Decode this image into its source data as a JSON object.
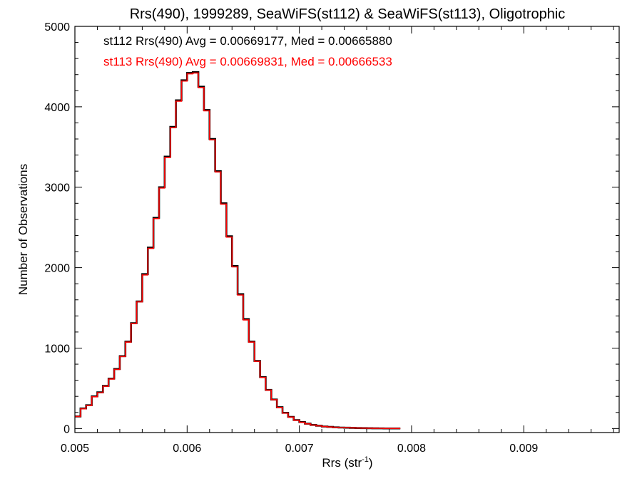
{
  "chart_data": {
    "type": "line",
    "title": "Rrs(490), 1999289, SeaWiFS(st112) & SeaWiFS(st113), Oligotrophic",
    "xlabel_main": "Rrs (str",
    "xlabel_sup": "-1",
    "xlabel_end": ")",
    "ylabel": "Number of Observations",
    "xlim": [
      0.005,
      0.00985
    ],
    "ylim": [
      -50,
      5000
    ],
    "xticks": [
      0.005,
      0.006,
      0.007,
      0.008,
      0.009
    ],
    "xtick_labels": [
      "0.005",
      "0.006",
      "0.007",
      "0.008",
      "0.009"
    ],
    "yticks": [
      0,
      1000,
      2000,
      3000,
      4000,
      5000
    ],
    "ytick_labels": [
      "0",
      "1000",
      "2000",
      "3000",
      "4000",
      "5000"
    ],
    "grid": false,
    "annotations": [
      {
        "text": "st112 Rrs(490) Avg = 0.00669177, Med = 0.00665880",
        "color": "#000000"
      },
      {
        "text": "st113 Rrs(490) Avg = 0.00669831, Med = 0.00666533",
        "color": "#ff0000"
      }
    ],
    "series": [
      {
        "color": "#000000",
        "x_start": 0.005,
        "bin_width": 5e-05,
        "values": [
          150,
          250,
          290,
          400,
          450,
          530,
          620,
          740,
          900,
          1080,
          1310,
          1580,
          1920,
          2250,
          2620,
          3000,
          3380,
          3750,
          4080,
          4330,
          4420,
          4430,
          4250,
          3960,
          3600,
          3200,
          2800,
          2390,
          2020,
          1670,
          1360,
          1080,
          840,
          640,
          480,
          360,
          265,
          195,
          145,
          105,
          80,
          60,
          45,
          35,
          25,
          20,
          15,
          12,
          10,
          8,
          6,
          5,
          4,
          3,
          2,
          1,
          1,
          1
        ]
      },
      {
        "color": "#ff0000",
        "x_start": 0.005,
        "bin_width": 5e-05,
        "values": [
          150,
          245,
          285,
          395,
          445,
          525,
          615,
          735,
          895,
          1075,
          1305,
          1575,
          1910,
          2240,
          2610,
          2990,
          3370,
          3740,
          4070,
          4320,
          4410,
          4420,
          4240,
          3950,
          3590,
          3190,
          2790,
          2380,
          2010,
          1660,
          1350,
          1075,
          835,
          635,
          478,
          358,
          262,
          192,
          142,
          103,
          78,
          58,
          44,
          34,
          25,
          19,
          15,
          12,
          10,
          8,
          6,
          5,
          4,
          3,
          2,
          1,
          1,
          1
        ]
      }
    ]
  }
}
